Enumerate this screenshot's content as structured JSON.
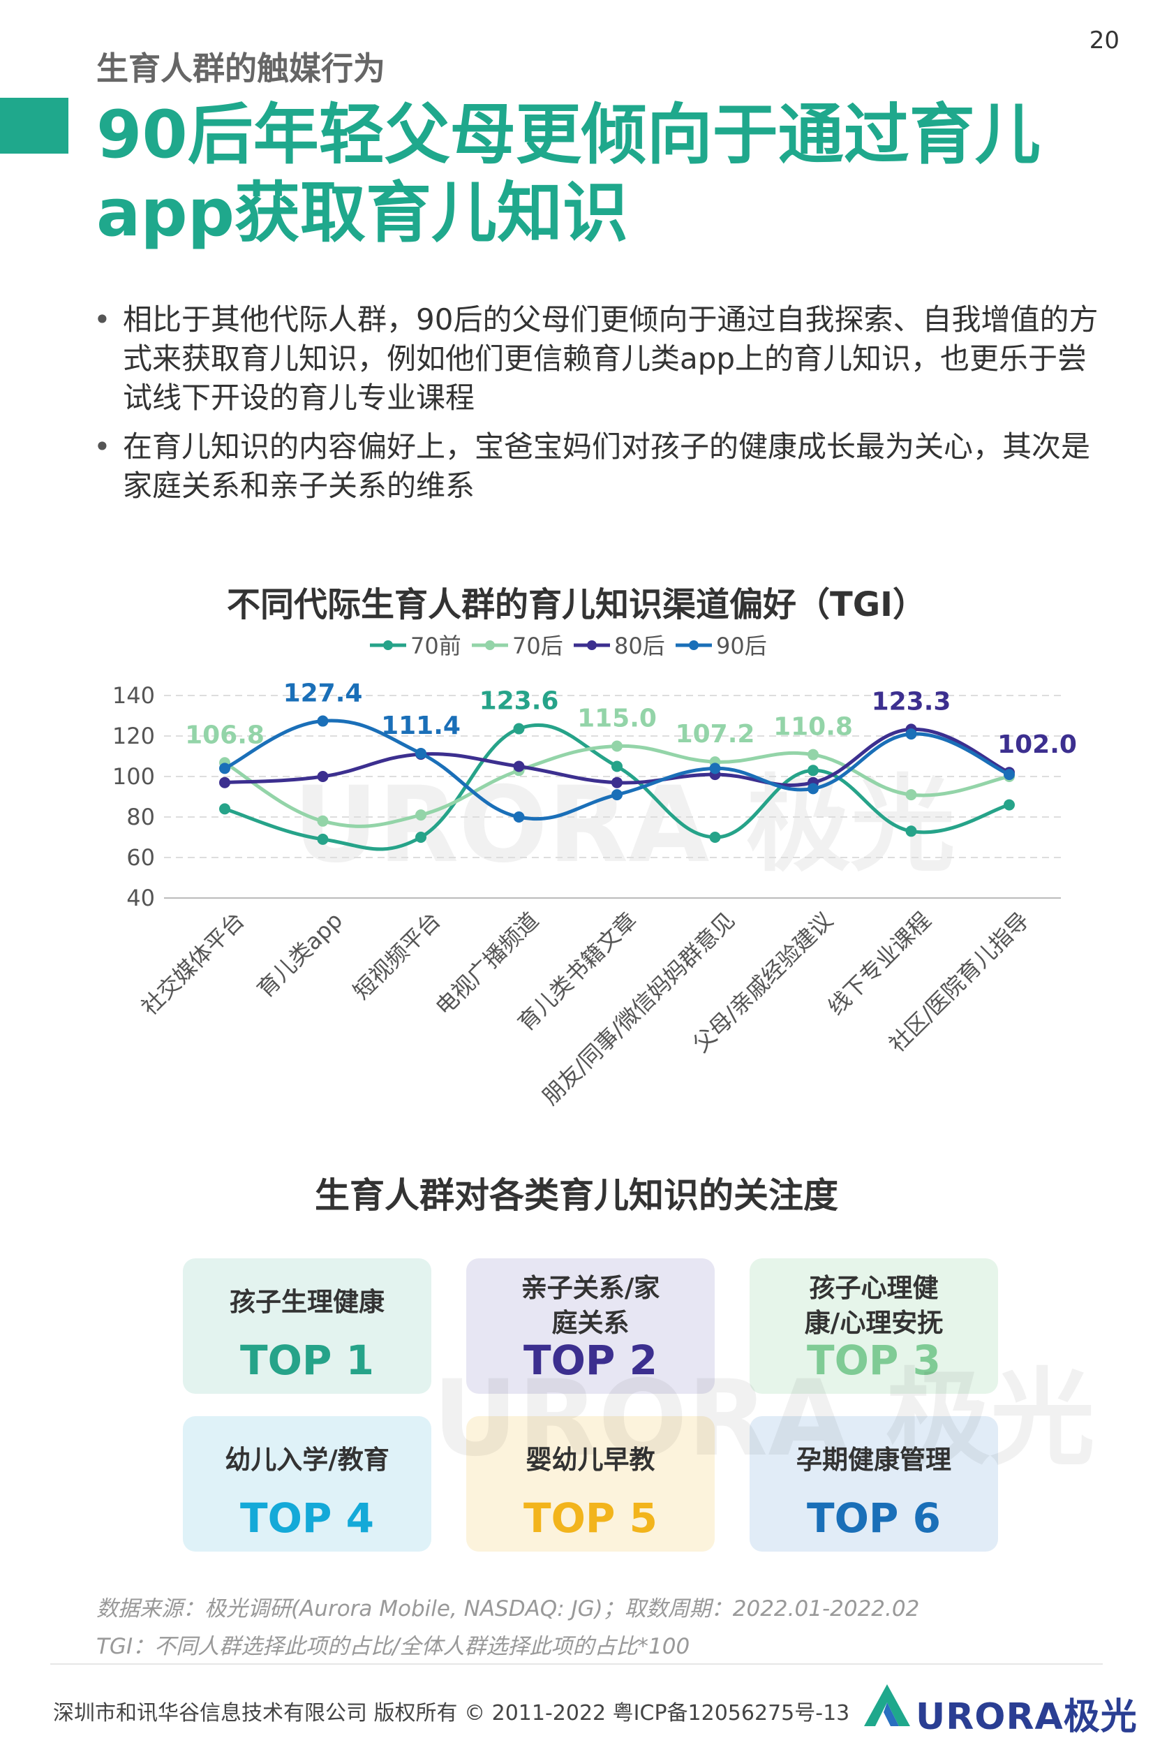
{
  "page_number": "20",
  "section_title": "生育人群的触媒行为",
  "headline": "90后年轻父母更倾向于通过育儿app获取育儿知识",
  "bullets": [
    "相比于其他代际人群，90后的父母们更倾向于通过自我探索、自我增值的方式来获取育儿知识，例如他们更信赖育儿类app上的育儿知识，也更乐于尝试线下开设的育儿专业课程",
    "在育儿知识的内容偏好上，宝爸宝妈们对孩子的健康成长最为关心，其次是家庭关系和亲子关系的维系"
  ],
  "chart_data": {
    "type": "line",
    "title": "不同代际生育人群的育儿知识渠道偏好（TGI）",
    "categories": [
      "社交媒体平台",
      "育儿类app",
      "短视频平台",
      "电视广播频道",
      "育儿类书籍文章",
      "朋友/同事/微信妈妈群意见",
      "父母/亲戚经验建议",
      "线下专业课程",
      "社区/医院育儿指导"
    ],
    "series": [
      {
        "name": "70前",
        "color": "#26a389",
        "values": [
          84,
          69,
          70,
          123.6,
          105,
          70,
          103,
          73,
          86
        ],
        "labels": [
          null,
          null,
          null,
          "123.6",
          null,
          null,
          null,
          null,
          null
        ]
      },
      {
        "name": "70后",
        "color": "#93d4a8",
        "values": [
          106.8,
          78,
          81,
          103,
          115.0,
          107.2,
          110.8,
          91,
          100
        ],
        "labels": [
          "106.8",
          null,
          null,
          null,
          "115.0",
          "107.2",
          "110.8",
          null,
          null
        ]
      },
      {
        "name": "80后",
        "color": "#3c2f8f",
        "values": [
          97,
          100,
          111,
          105,
          97,
          101,
          97,
          123.3,
          102.0
        ],
        "labels": [
          null,
          null,
          null,
          null,
          null,
          null,
          null,
          "123.3",
          "102.0"
        ]
      },
      {
        "name": "90后",
        "color": "#1a6fb8",
        "values": [
          104,
          127.4,
          111.4,
          80,
          91,
          104,
          94,
          121,
          101
        ],
        "labels": [
          null,
          "127.4",
          "111.4",
          null,
          null,
          null,
          null,
          null,
          null
        ]
      }
    ],
    "ylim": [
      40,
      140
    ],
    "yticks": [
      "140",
      "120",
      "100",
      "80",
      "60",
      "40"
    ],
    "grid": true,
    "legend": "top-center"
  },
  "grid_title": "生育人群对各类育儿知识的关注度",
  "ranking_cards": [
    {
      "label": "孩子生理健康",
      "rank": "TOP 1",
      "bg": "#e3f3ef",
      "color": "#26a389"
    },
    {
      "label": "亲子关系/家庭关系",
      "rank": "TOP 2",
      "bg": "#e7e6f3",
      "color": "#3c2f8f"
    },
    {
      "label": "孩子心理健康/心理安抚",
      "rank": "TOP 3",
      "bg": "#e6f5ea",
      "color": "#7fcb95"
    },
    {
      "label": "幼儿入学/教育",
      "rank": "TOP 4",
      "bg": "#dff2f8",
      "color": "#14a9d8"
    },
    {
      "label": "婴幼儿早教",
      "rank": "TOP 5",
      "bg": "#fcf3dc",
      "color": "#f2b41c"
    },
    {
      "label": "孕期健康管理",
      "rank": "TOP 6",
      "bg": "#e1ecf7",
      "color": "#1a6fb8"
    }
  ],
  "source_note": "数据来源：极光调研(Aurora Mobile, NASDAQ: JG)；取数周期：2022.01-2022.02",
  "tgi_note": "TGI：不同人群选择此项的占比/全体人群选择此项的占比*100",
  "footer_copyright": "深圳市和讯华谷信息技术有限公司 版权所有 © 2011-2022 粤ICP备12056275号-13",
  "brand": "URORA极光",
  "watermark": "URORA 极光"
}
